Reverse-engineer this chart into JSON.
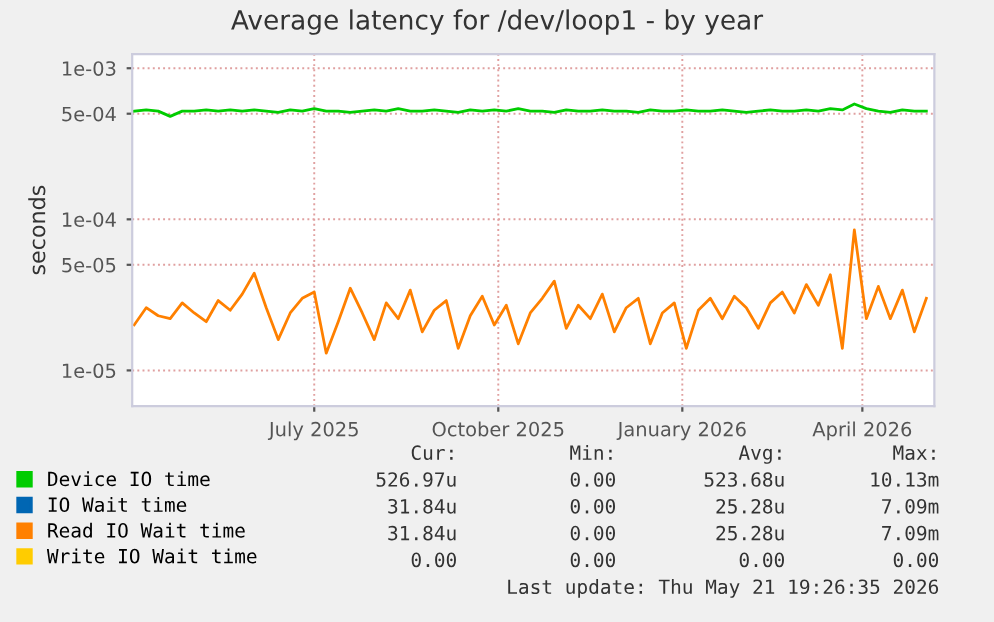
{
  "chart_data": {
    "type": "line",
    "title": "Average latency for /dev/loop1 - by year",
    "ylabel": "seconds",
    "log": "y",
    "grid": true,
    "legend": "bottom",
    "marker": "none",
    "line_style": "solid",
    "ylim": [
      5.8e-06,
      0.00124
    ],
    "yticks": [
      {
        "value": 0.001,
        "label": "1e-03"
      },
      {
        "value": 0.0005,
        "label": "5e-04"
      },
      {
        "value": 0.0001,
        "label": "1e-04"
      },
      {
        "value": 5e-05,
        "label": "5e-05"
      },
      {
        "value": 1e-05,
        "label": "1e-05"
      }
    ],
    "xlim": [
      "2025-04-01",
      "2026-05-07"
    ],
    "xticks": [
      {
        "value": "2025-07-01",
        "label": "July 2025"
      },
      {
        "value": "2025-10-01",
        "label": "October 2025"
      },
      {
        "value": "2026-01-01",
        "label": "January 2026"
      },
      {
        "value": "2026-04-01",
        "label": "April 2026"
      }
    ],
    "x": [
      "2025-04-02",
      "2025-04-08",
      "2025-04-14",
      "2025-04-20",
      "2025-04-26",
      "2025-05-02",
      "2025-05-08",
      "2025-05-14",
      "2025-05-20",
      "2025-05-26",
      "2025-06-01",
      "2025-06-07",
      "2025-06-13",
      "2025-06-19",
      "2025-06-25",
      "2025-07-01",
      "2025-07-07",
      "2025-07-13",
      "2025-07-19",
      "2025-07-25",
      "2025-07-31",
      "2025-08-06",
      "2025-08-12",
      "2025-08-18",
      "2025-08-24",
      "2025-08-30",
      "2025-09-05",
      "2025-09-11",
      "2025-09-17",
      "2025-09-23",
      "2025-09-29",
      "2025-10-05",
      "2025-10-11",
      "2025-10-17",
      "2025-10-23",
      "2025-10-29",
      "2025-11-04",
      "2025-11-10",
      "2025-11-16",
      "2025-11-22",
      "2025-11-28",
      "2025-12-04",
      "2025-12-10",
      "2025-12-16",
      "2025-12-22",
      "2025-12-28",
      "2026-01-03",
      "2026-01-09",
      "2026-01-15",
      "2026-01-21",
      "2026-01-27",
      "2026-02-02",
      "2026-02-08",
      "2026-02-14",
      "2026-02-20",
      "2026-02-26",
      "2026-03-04",
      "2026-03-10",
      "2026-03-16",
      "2026-03-22",
      "2026-03-28",
      "2026-04-03",
      "2026-04-09",
      "2026-04-15",
      "2026-04-21",
      "2026-04-27",
      "2026-05-03"
    ],
    "series": [
      {
        "name": "Device IO time",
        "color": "#00cc00",
        "values": [
          0.00052,
          0.00053,
          0.00052,
          0.00048,
          0.00052,
          0.00052,
          0.00053,
          0.00052,
          0.00053,
          0.00052,
          0.00053,
          0.00052,
          0.00051,
          0.00053,
          0.00052,
          0.00054,
          0.00052,
          0.00052,
          0.00051,
          0.00052,
          0.00053,
          0.00052,
          0.00054,
          0.00052,
          0.00052,
          0.00053,
          0.00052,
          0.00051,
          0.00053,
          0.00052,
          0.00053,
          0.00052,
          0.00054,
          0.00052,
          0.00052,
          0.00051,
          0.00053,
          0.00052,
          0.00052,
          0.00053,
          0.00052,
          0.00052,
          0.00051,
          0.00053,
          0.00052,
          0.00052,
          0.00053,
          0.00052,
          0.00052,
          0.00053,
          0.00052,
          0.00051,
          0.00052,
          0.00053,
          0.00052,
          0.00052,
          0.00053,
          0.00052,
          0.00054,
          0.00053,
          0.00058,
          0.00054,
          0.00052,
          0.00051,
          0.00053,
          0.00052,
          0.00052
        ]
      },
      {
        "name": "IO Wait time",
        "color": "#0066b3",
        "values": [
          null,
          null,
          null,
          null,
          null,
          null,
          null,
          null,
          null,
          null,
          null,
          null,
          null,
          null,
          null,
          null,
          null,
          null,
          null,
          null,
          null,
          null,
          null,
          null,
          null,
          null,
          null,
          null,
          null,
          null,
          null,
          null,
          null,
          null,
          null,
          null,
          null,
          null,
          null,
          null,
          null,
          null,
          null,
          null,
          null,
          null,
          null,
          null,
          null,
          null,
          null,
          null,
          null,
          null,
          null,
          null,
          null,
          null,
          null,
          null,
          null,
          null,
          null,
          null,
          null,
          null,
          null
        ]
      },
      {
        "name": "Read IO Wait time",
        "color": "#ff8000",
        "values": [
          2e-05,
          2.6e-05,
          2.3e-05,
          2.2e-05,
          2.8e-05,
          2.4e-05,
          2.1e-05,
          2.9e-05,
          2.5e-05,
          3.2e-05,
          4.4e-05,
          2.6e-05,
          1.6e-05,
          2.4e-05,
          3e-05,
          3.3e-05,
          1.3e-05,
          2.1e-05,
          3.5e-05,
          2.4e-05,
          1.6e-05,
          2.8e-05,
          2.2e-05,
          3.4e-05,
          1.8e-05,
          2.5e-05,
          2.9e-05,
          1.4e-05,
          2.3e-05,
          3.1e-05,
          2e-05,
          2.7e-05,
          1.5e-05,
          2.4e-05,
          3e-05,
          3.9e-05,
          1.9e-05,
          2.7e-05,
          2.2e-05,
          3.2e-05,
          1.8e-05,
          2.6e-05,
          3e-05,
          1.5e-05,
          2.4e-05,
          2.8e-05,
          1.4e-05,
          2.5e-05,
          3e-05,
          2.2e-05,
          3.1e-05,
          2.6e-05,
          1.9e-05,
          2.8e-05,
          3.3e-05,
          2.4e-05,
          3.7e-05,
          2.7e-05,
          4.3e-05,
          1.4e-05,
          8.5e-05,
          2.2e-05,
          3.6e-05,
          2.2e-05,
          3.4e-05,
          1.8e-05,
          3e-05
        ]
      },
      {
        "name": "Write IO Wait time",
        "color": "#ffcc00",
        "values": [
          null,
          null,
          null,
          null,
          null,
          null,
          null,
          null,
          null,
          null,
          null,
          null,
          null,
          null,
          null,
          null,
          null,
          null,
          null,
          null,
          null,
          null,
          null,
          null,
          null,
          null,
          null,
          null,
          null,
          null,
          null,
          null,
          null,
          null,
          null,
          null,
          null,
          null,
          null,
          null,
          null,
          null,
          null,
          null,
          null,
          null,
          null,
          null,
          null,
          null,
          null,
          null,
          null,
          null,
          null,
          null,
          null,
          null,
          null,
          null,
          null,
          null,
          null,
          null,
          null,
          null,
          null
        ]
      }
    ],
    "annotations": [
      "Cur:",
      "Min:",
      "Avg:",
      "Max:",
      "526.97u",
      "0.00",
      "523.68u",
      "10.13m",
      "31.84u",
      "0.00",
      "25.28u",
      "7.09m",
      "31.84u",
      "0.00",
      "25.28u",
      "7.09m",
      "0.00",
      "0.00",
      "0.00",
      "0.00",
      "Last update: Thu May 21 19:26:35 2026"
    ]
  }
}
